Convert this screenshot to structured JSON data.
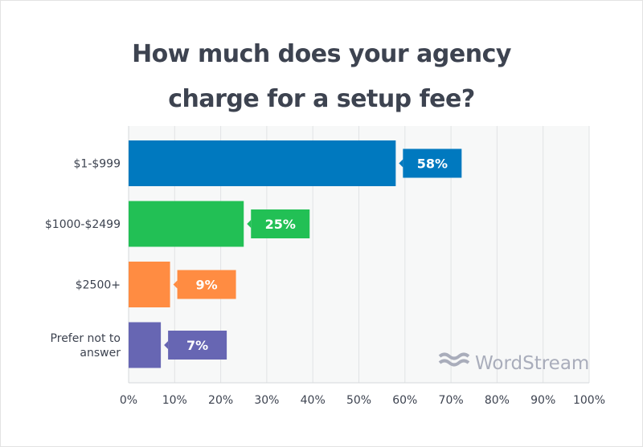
{
  "chart_data": {
    "type": "bar",
    "orientation": "horizontal",
    "title_lines": [
      "How much does your agency",
      "charge for a setup fee?"
    ],
    "categories": [
      "$1-$999",
      "$1000-$2499",
      "$2500+",
      "Prefer not to answer"
    ],
    "category_label_lines": [
      [
        "$1-$999"
      ],
      [
        "$1000-$2499"
      ],
      [
        "$2500+"
      ],
      [
        "Prefer not to",
        "answer"
      ]
    ],
    "values": [
      58,
      25,
      9,
      7
    ],
    "data_labels": [
      "58%",
      "25%",
      "9%",
      "7%"
    ],
    "colors": [
      "#0079bf",
      "#22c055",
      "#ff8c42",
      "#6766b3"
    ],
    "xlim": [
      0,
      100
    ],
    "xticks": [
      "0%",
      "10%",
      "20%",
      "30%",
      "40%",
      "50%",
      "60%",
      "70%",
      "80%",
      "90%",
      "100%"
    ],
    "grid": true,
    "xlabel": "",
    "ylabel": ""
  },
  "watermark": "WordStream"
}
